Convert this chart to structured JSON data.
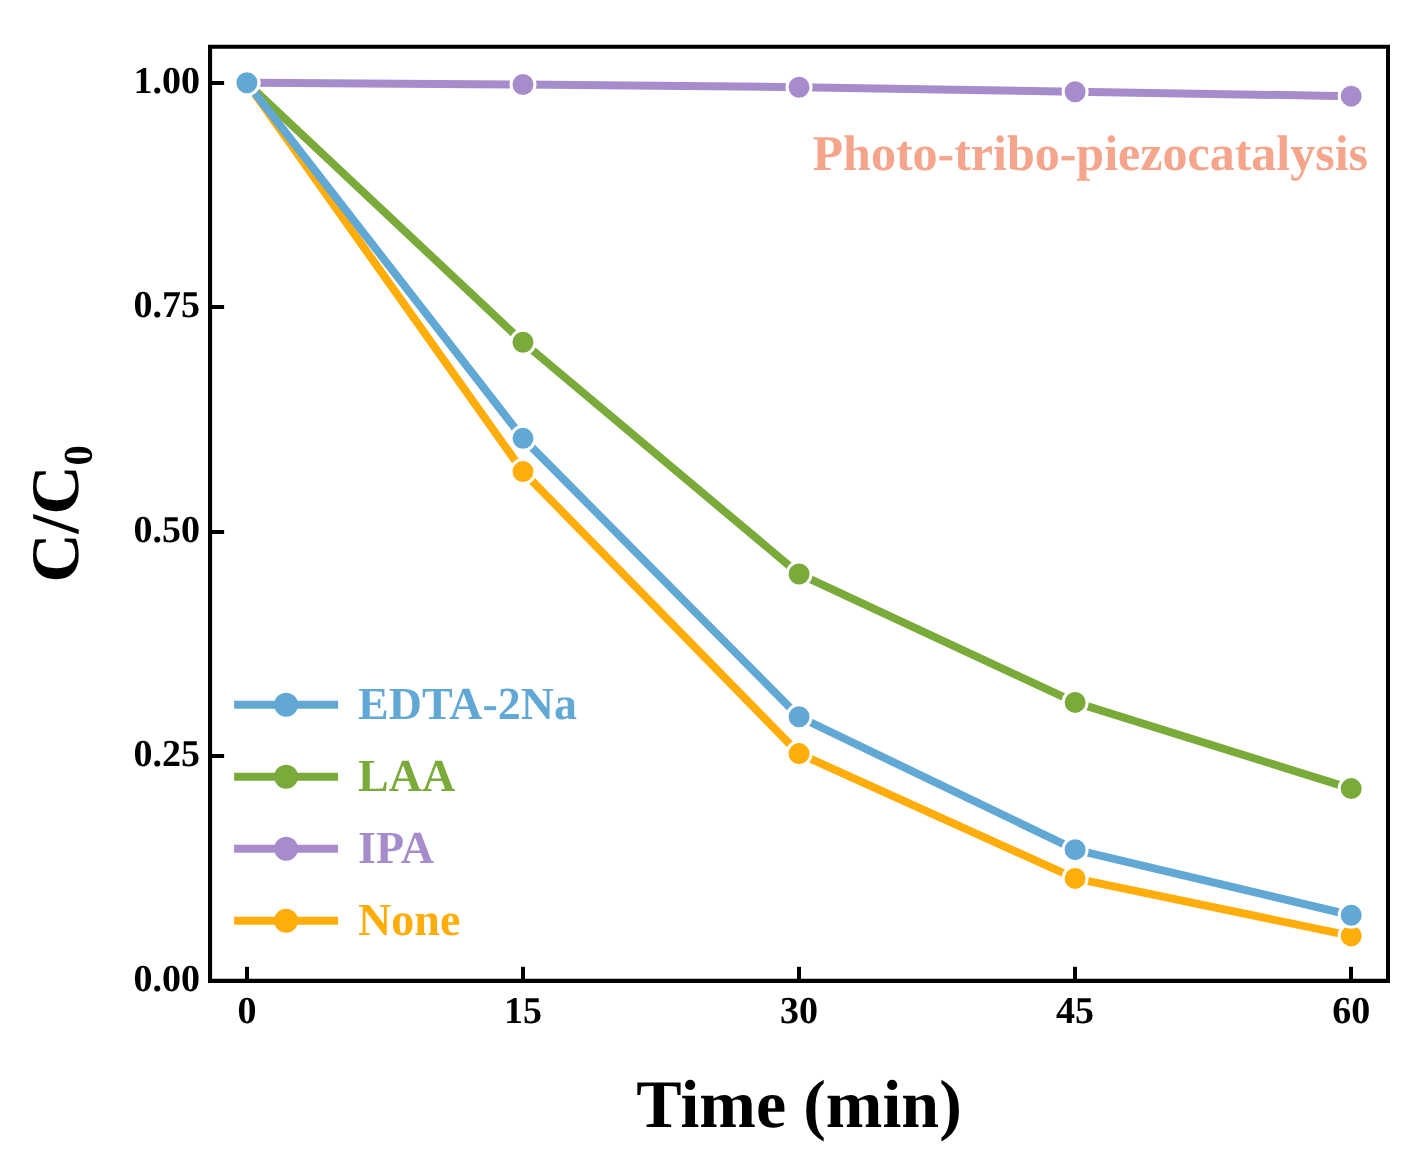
{
  "chart_data": {
    "type": "line",
    "xlabel": "Time (min)",
    "ylabel": "C/C₀",
    "x": [
      0,
      15,
      30,
      45,
      60
    ],
    "series": [
      {
        "name": "EDTA-2Na",
        "color": "#62a8d4",
        "values": [
          1.0,
          0.604,
          0.294,
          0.146,
          0.073
        ]
      },
      {
        "name": "LAA",
        "color": "#7aab3a",
        "values": [
          1.0,
          0.711,
          0.453,
          0.31,
          0.214
        ]
      },
      {
        "name": "IPA",
        "color": "#a68ccb",
        "values": [
          1.0,
          0.998,
          0.995,
          0.99,
          0.985
        ]
      },
      {
        "name": "None",
        "color": "#ffad0a",
        "values": [
          1.0,
          0.567,
          0.253,
          0.114,
          0.05
        ]
      }
    ],
    "xlim": [
      -2,
      62
    ],
    "xticks": [
      0,
      15,
      30,
      45,
      60
    ],
    "ylim": [
      0,
      1.04
    ],
    "yticks": [
      {
        "value": 0,
        "label": "0.00"
      },
      {
        "value": 0.25,
        "label": "0.25"
      },
      {
        "value": 0.5,
        "label": "0.50"
      },
      {
        "value": 0.75,
        "label": "0.75"
      },
      {
        "value": 1,
        "label": "1.00"
      }
    ],
    "annotations": [
      "Photo-tribo-piezocatalysis"
    ],
    "legend": "bottom left",
    "marker": "circle",
    "line_style": "solid",
    "grid": false
  }
}
